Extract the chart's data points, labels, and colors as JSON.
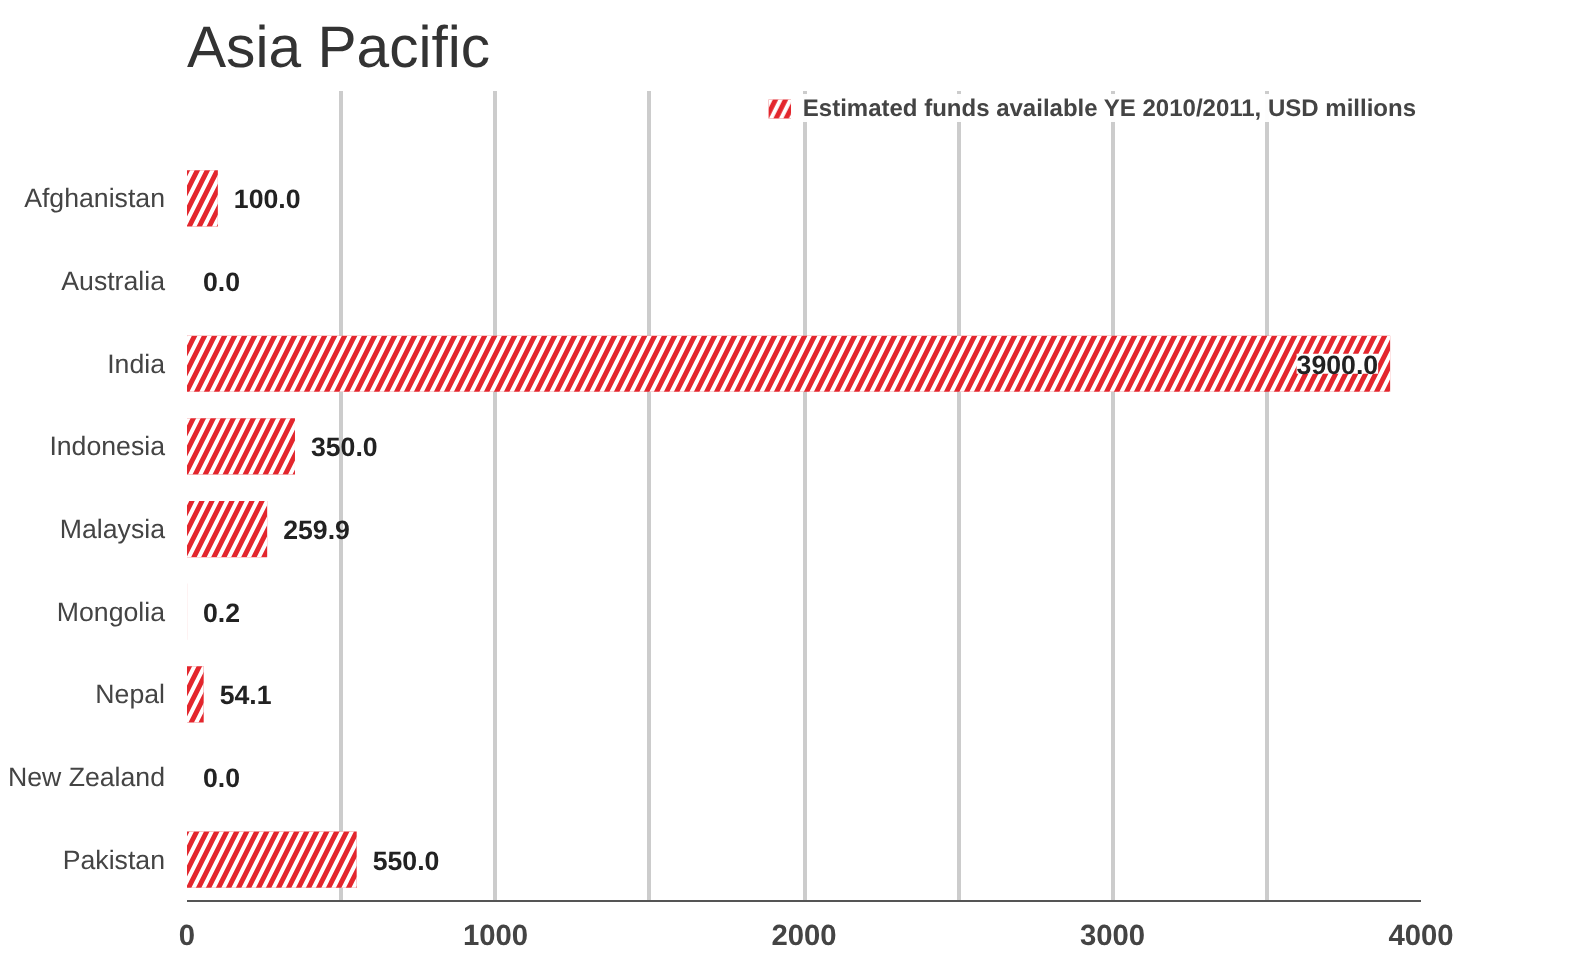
{
  "chart_data": {
    "type": "bar",
    "orientation": "horizontal",
    "title": "Asia Pacific",
    "categories": [
      "Afghanistan",
      "Australia",
      "India",
      "Indonesia",
      "Malaysia",
      "Mongolia",
      "Nepal",
      "New Zealand",
      "Pakistan"
    ],
    "series": [
      {
        "name": "Estimated funds available YE 2010/2011, USD millions",
        "color": "#e3262d",
        "values": [
          100.0,
          0.0,
          3900.0,
          350.0,
          259.9,
          0.2,
          54.1,
          0.0,
          550.0
        ],
        "value_labels": [
          "100.0",
          "0.0",
          "3900.0",
          "350.0",
          "259.9",
          "0.2",
          "54.1",
          "0.0",
          "550.0"
        ]
      }
    ],
    "xlim": [
      0,
      4000
    ],
    "xticks": [
      0,
      {
        "value": 500,
        "label": null
      },
      1000,
      {
        "value": 1500,
        "label": null
      },
      2000,
      {
        "value": 2500,
        "label": null
      },
      3000,
      {
        "value": 3500,
        "label": null
      },
      4000
    ],
    "grid": "x",
    "legend": "top right"
  }
}
